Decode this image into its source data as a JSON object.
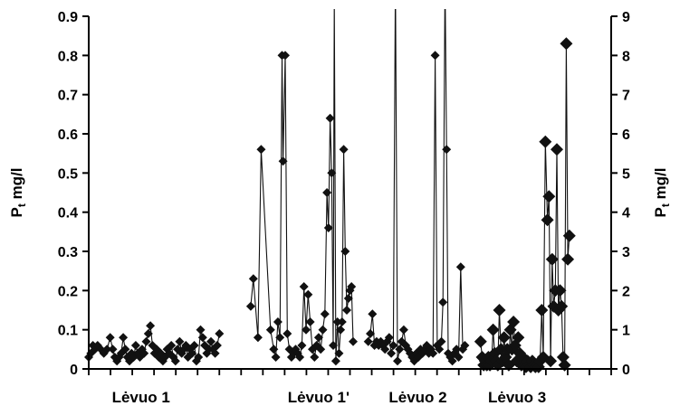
{
  "chart_data": {
    "type": "line",
    "title": "",
    "ylabel_left": {
      "main": "P",
      "sub": "t",
      "unit": " mg/l"
    },
    "ylabel_right": {
      "main": "P",
      "sub": "t",
      "unit": " mg/l"
    },
    "ylim_left": [
      0,
      0.9
    ],
    "ylim_right": [
      0,
      9
    ],
    "yticks_left": [
      "0",
      "0.1",
      "0.2",
      "0.3",
      "0.4",
      "0.5",
      "0.6",
      "0.7",
      "0.8",
      "0.9"
    ],
    "yticks_right": [
      "0",
      "1",
      "2",
      "3",
      "4",
      "5",
      "6",
      "7",
      "8",
      "9"
    ],
    "xlim": [
      0,
      100
    ],
    "grid": false,
    "categories": [
      {
        "label": "Lėvuo 1",
        "x": 10
      },
      {
        "label": "Lėvuo 1'",
        "x": 44
      },
      {
        "label": "Lėvuo 2",
        "x": 63
      },
      {
        "label": "Lėvuo 3",
        "x": 82
      }
    ],
    "series": [
      {
        "axis": "left",
        "marker_size": 5,
        "values": [
          [
            0.0,
            0.03
          ],
          [
            0.4,
            0.04
          ],
          [
            0.8,
            0.06
          ],
          [
            1.2,
            0.05
          ],
          [
            1.7,
            0.06
          ],
          [
            2.3,
            0.05
          ],
          [
            2.9,
            0.04
          ],
          [
            3.5,
            0.05
          ],
          [
            4.1,
            0.08
          ],
          [
            4.6,
            0.05
          ],
          [
            5.0,
            0.03
          ],
          [
            5.4,
            0.02
          ],
          [
            5.8,
            0.03
          ],
          [
            6.2,
            0.04
          ],
          [
            6.6,
            0.08
          ],
          [
            7.0,
            0.05
          ],
          [
            7.4,
            0.03
          ],
          [
            7.8,
            0.02
          ],
          [
            8.2,
            0.04
          ],
          [
            8.6,
            0.03
          ],
          [
            9.0,
            0.06
          ],
          [
            9.4,
            0.04
          ],
          [
            9.8,
            0.03
          ],
          [
            10.2,
            0.05
          ],
          [
            10.6,
            0.04
          ],
          [
            11.0,
            0.07
          ],
          [
            11.4,
            0.09
          ],
          [
            11.8,
            0.11
          ],
          [
            12.2,
            0.06
          ],
          [
            12.6,
            0.04
          ],
          [
            13.0,
            0.05
          ],
          [
            13.4,
            0.03
          ],
          [
            13.8,
            0.04
          ],
          [
            14.2,
            0.02
          ],
          [
            14.6,
            0.03
          ],
          [
            15.0,
            0.05
          ],
          [
            15.4,
            0.04
          ],
          [
            15.8,
            0.06
          ],
          [
            16.2,
            0.03
          ],
          [
            16.6,
            0.02
          ],
          [
            17.0,
            0.05
          ],
          [
            17.4,
            0.07
          ],
          [
            17.8,
            0.04
          ],
          [
            18.2,
            0.05
          ],
          [
            18.6,
            0.06
          ],
          [
            19.0,
            0.03
          ],
          [
            19.4,
            0.05
          ],
          [
            19.8,
            0.04
          ],
          [
            20.2,
            0.06
          ],
          [
            20.6,
            0.02
          ],
          [
            21.0,
            0.03
          ],
          [
            21.4,
            0.1
          ],
          [
            21.8,
            0.08
          ],
          [
            22.2,
            0.06
          ],
          [
            22.6,
            0.04
          ],
          [
            23.0,
            0.05
          ],
          [
            23.4,
            0.07
          ],
          [
            23.8,
            0.05
          ],
          [
            24.2,
            0.04
          ],
          [
            24.6,
            0.06
          ],
          [
            25.0,
            0.09
          ]
        ]
      },
      {
        "axis": "left",
        "marker_size": 5,
        "values": [
          [
            31.0,
            0.16
          ],
          [
            31.5,
            0.23
          ],
          [
            32.4,
            0.08
          ],
          [
            33.0,
            0.56
          ],
          [
            34.8,
            0.1
          ],
          [
            35.4,
            0.05
          ],
          [
            35.8,
            0.03
          ],
          [
            36.2,
            0.12
          ],
          [
            36.6,
            0.08
          ],
          [
            37.0,
            0.8
          ],
          [
            37.2,
            0.53
          ],
          [
            37.6,
            0.8
          ],
          [
            38.0,
            0.09
          ],
          [
            38.4,
            0.05
          ],
          [
            38.8,
            0.03
          ],
          [
            39.2,
            0.04
          ],
          [
            39.6,
            0.05
          ],
          [
            40.0,
            0.04
          ],
          [
            40.4,
            0.03
          ],
          [
            40.8,
            0.06
          ],
          [
            41.2,
            0.21
          ],
          [
            41.6,
            0.1
          ],
          [
            42.0,
            0.19
          ],
          [
            42.4,
            0.12
          ],
          [
            42.8,
            0.05
          ],
          [
            43.2,
            0.03
          ],
          [
            43.6,
            0.06
          ],
          [
            44.0,
            0.08
          ],
          [
            44.4,
            0.05
          ],
          [
            44.8,
            0.1
          ],
          [
            45.2,
            0.14
          ],
          [
            45.6,
            0.45
          ],
          [
            45.9,
            0.36
          ],
          [
            46.2,
            0.64
          ],
          [
            46.5,
            0.5
          ],
          [
            46.8,
            0.06
          ],
          [
            47.0,
            0.95
          ],
          [
            47.3,
            0.02
          ],
          [
            47.6,
            0.12
          ],
          [
            47.9,
            0.04
          ],
          [
            48.2,
            0.1
          ],
          [
            48.5,
            0.12
          ],
          [
            48.8,
            0.56
          ],
          [
            49.1,
            0.3
          ],
          [
            49.4,
            0.15
          ],
          [
            49.7,
            0.18
          ],
          [
            50.0,
            0.2
          ],
          [
            50.3,
            0.21
          ],
          [
            50.6,
            0.07
          ]
        ]
      },
      {
        "axis": "left",
        "marker_size": 5,
        "values": [
          [
            53.5,
            0.07
          ],
          [
            53.9,
            0.09
          ],
          [
            54.3,
            0.14
          ],
          [
            54.7,
            0.06
          ],
          [
            55.1,
            0.07
          ],
          [
            55.5,
            0.06
          ],
          [
            55.9,
            0.07
          ],
          [
            56.3,
            0.06
          ],
          [
            56.7,
            0.05
          ],
          [
            57.1,
            0.07
          ],
          [
            57.5,
            0.08
          ],
          [
            57.9,
            0.04
          ],
          [
            58.3,
            0.06
          ],
          [
            58.7,
            1.0
          ],
          [
            59.1,
            0.02
          ],
          [
            59.5,
            0.05
          ],
          [
            59.9,
            0.07
          ],
          [
            60.3,
            0.1
          ],
          [
            60.7,
            0.06
          ],
          [
            61.1,
            0.05
          ],
          [
            61.5,
            0.04
          ],
          [
            61.9,
            0.03
          ],
          [
            62.3,
            0.02
          ],
          [
            62.7,
            0.04
          ],
          [
            63.1,
            0.03
          ],
          [
            63.5,
            0.05
          ],
          [
            63.9,
            0.04
          ],
          [
            64.3,
            0.05
          ],
          [
            64.7,
            0.06
          ],
          [
            65.1,
            0.04
          ],
          [
            65.5,
            0.05
          ],
          [
            65.9,
            0.04
          ],
          [
            66.3,
            0.8
          ],
          [
            66.7,
            0.06
          ],
          [
            67.1,
            0.05
          ],
          [
            67.5,
            0.07
          ],
          [
            67.8,
            0.17
          ],
          [
            68.2,
            1.0
          ],
          [
            68.5,
            0.56
          ],
          [
            68.8,
            0.04
          ],
          [
            69.2,
            0.03
          ],
          [
            69.6,
            0.02
          ],
          [
            70.0,
            0.04
          ],
          [
            70.4,
            0.05
          ],
          [
            70.8,
            0.03
          ],
          [
            71.2,
            0.26
          ],
          [
            71.6,
            0.05
          ],
          [
            72.0,
            0.06
          ]
        ]
      },
      {
        "axis": "right",
        "marker_size": 7,
        "values": [
          [
            75.0,
            0.7
          ],
          [
            75.3,
            0.3
          ],
          [
            75.6,
            0.1
          ],
          [
            75.9,
            0.2
          ],
          [
            76.2,
            0.1
          ],
          [
            76.5,
            0.3
          ],
          [
            76.8,
            0.1
          ],
          [
            77.1,
            0.2
          ],
          [
            77.4,
            1.0
          ],
          [
            77.7,
            0.4
          ],
          [
            78.0,
            0.2
          ],
          [
            78.3,
            0.1
          ],
          [
            78.6,
            1.5
          ],
          [
            78.9,
            0.5
          ],
          [
            79.2,
            0.2
          ],
          [
            79.5,
            0.8
          ],
          [
            79.8,
            0.3
          ],
          [
            80.1,
            0.5
          ],
          [
            80.4,
            0.1
          ],
          [
            80.7,
            1.0
          ],
          [
            81.0,
            0.5
          ],
          [
            81.3,
            1.2
          ],
          [
            81.6,
            0.6
          ],
          [
            81.9,
            0.2
          ],
          [
            82.2,
            0.8
          ],
          [
            82.5,
            0.4
          ],
          [
            82.8,
            0.1
          ],
          [
            83.1,
            0.3
          ],
          [
            83.4,
            0.1
          ],
          [
            83.7,
            0.05
          ],
          [
            84.0,
            0.2
          ],
          [
            84.3,
            0.1
          ],
          [
            84.6,
            0.05
          ],
          [
            84.9,
            0.2
          ],
          [
            85.2,
            0.1
          ],
          [
            85.5,
            0.05
          ],
          [
            85.8,
            0.1
          ],
          [
            86.1,
            0.05
          ],
          [
            86.4,
            0.2
          ],
          [
            86.7,
            1.5
          ],
          [
            87.0,
            0.3
          ],
          [
            87.4,
            5.8
          ],
          [
            87.8,
            3.8
          ],
          [
            88.1,
            4.4
          ],
          [
            88.4,
            0.2
          ],
          [
            88.7,
            2.8
          ],
          [
            89.0,
            1.6
          ],
          [
            89.3,
            2.0
          ],
          [
            89.6,
            5.6
          ],
          [
            89.9,
            1.5
          ],
          [
            90.2,
            2.0
          ],
          [
            90.5,
            1.6
          ],
          [
            90.8,
            0.3
          ],
          [
            91.1,
            0.1
          ],
          [
            91.4,
            8.3
          ],
          [
            91.7,
            2.8
          ],
          [
            92.0,
            3.4
          ]
        ]
      }
    ]
  }
}
